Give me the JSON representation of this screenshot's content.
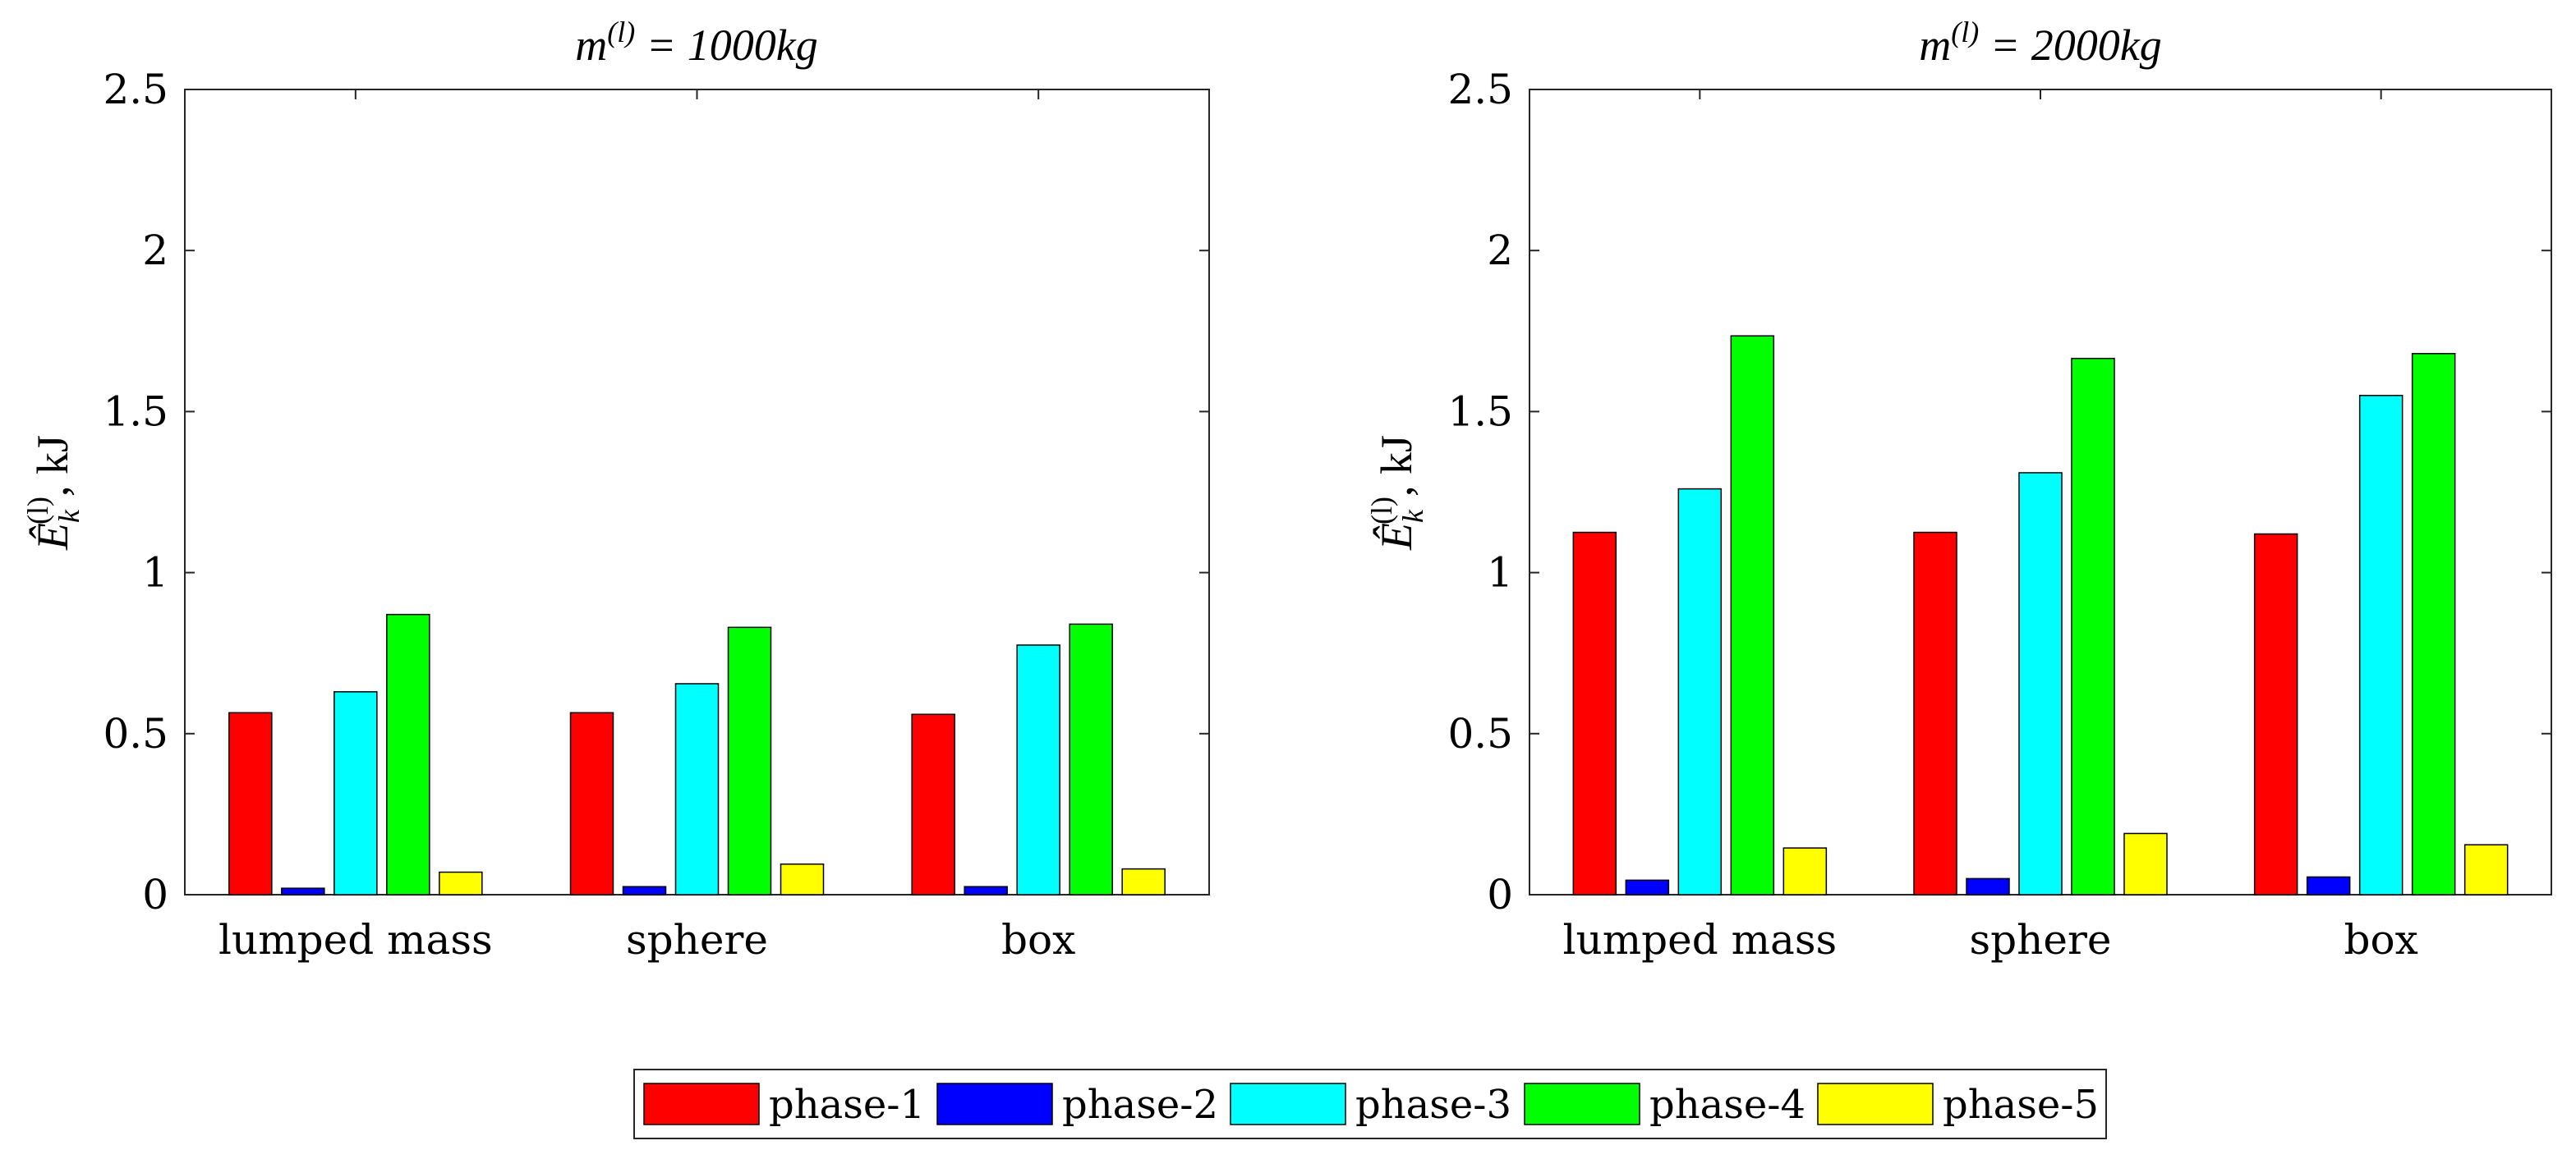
{
  "chart_data": [
    {
      "type": "bar",
      "title_var": "m",
      "title_sup": "(l)",
      "title_rest": " = 1000kg",
      "ylabel_var": "Ê",
      "ylabel_sub": "k",
      "ylabel_sup": "(l)",
      "ylabel_unit": ", kJ",
      "categories": [
        "lumped mass",
        "sphere",
        "box"
      ],
      "series": [
        {
          "name": "phase-1",
          "values": [
            0.565,
            0.565,
            0.56
          ]
        },
        {
          "name": "phase-2",
          "values": [
            0.02,
            0.025,
            0.025
          ]
        },
        {
          "name": "phase-3",
          "values": [
            0.63,
            0.655,
            0.775
          ]
        },
        {
          "name": "phase-4",
          "values": [
            0.87,
            0.83,
            0.84
          ]
        },
        {
          "name": "phase-5",
          "values": [
            0.07,
            0.095,
            0.08
          ]
        }
      ],
      "ylim": [
        0,
        2.5
      ],
      "yticks": [
        "0",
        "0.5",
        "1",
        "1.5",
        "2",
        "2.5"
      ],
      "ytick_values": [
        0,
        0.5,
        1,
        1.5,
        2,
        2.5
      ]
    },
    {
      "type": "bar",
      "title_var": "m",
      "title_sup": "(l)",
      "title_rest": " = 2000kg",
      "ylabel_var": "Ê",
      "ylabel_sub": "k",
      "ylabel_sup": "(l)",
      "ylabel_unit": ", kJ",
      "categories": [
        "lumped mass",
        "sphere",
        "box"
      ],
      "series": [
        {
          "name": "phase-1",
          "values": [
            1.125,
            1.125,
            1.12
          ]
        },
        {
          "name": "phase-2",
          "values": [
            0.045,
            0.05,
            0.055
          ]
        },
        {
          "name": "phase-3",
          "values": [
            1.26,
            1.31,
            1.55
          ]
        },
        {
          "name": "phase-4",
          "values": [
            1.735,
            1.665,
            1.68
          ]
        },
        {
          "name": "phase-5",
          "values": [
            0.145,
            0.19,
            0.155
          ]
        }
      ],
      "ylim": [
        0,
        2.5
      ],
      "yticks": [
        "0",
        "0.5",
        "1",
        "1.5",
        "2",
        "2.5"
      ],
      "ytick_values": [
        0,
        0.5,
        1,
        1.5,
        2,
        2.5
      ]
    }
  ],
  "legend": {
    "entries": [
      "phase-1",
      "phase-2",
      "phase-3",
      "phase-4",
      "phase-5"
    ],
    "placement": "bottom-center"
  },
  "colors": {
    "phase-1": "#ff0000",
    "phase-2": "#0000ff",
    "phase-3": "#00ffff",
    "phase-4": "#00ff00",
    "phase-5": "#ffff00"
  }
}
